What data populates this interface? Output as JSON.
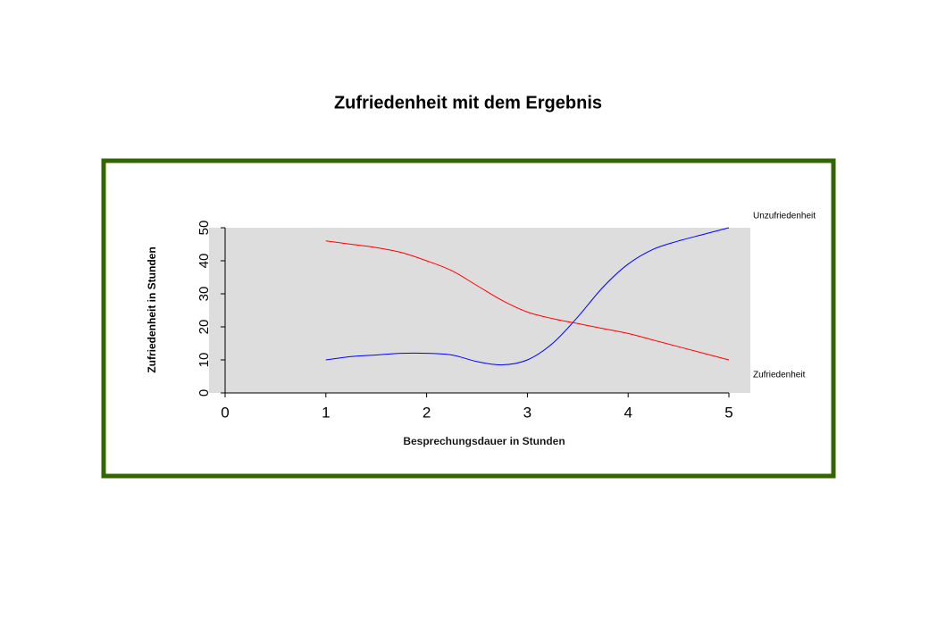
{
  "chart_data": {
    "type": "line",
    "title": "Zufriedenheit mit dem Ergebnis",
    "x_label": "Besprechungsdauer  in Stunden",
    "y_label": "Zufriedenheit  in Stunden",
    "x": [
      1,
      1.25,
      1.5,
      1.75,
      2,
      2.25,
      2.5,
      2.75,
      3,
      3.25,
      3.5,
      3.75,
      4,
      4.25,
      4.5,
      4.75,
      5
    ],
    "series": [
      {
        "name": "Unzufriedenheit",
        "color": "#0000ff",
        "values": [
          10,
          11,
          11.5,
          12,
          12,
          11.5,
          9.5,
          8.5,
          10,
          15,
          23,
          32,
          39,
          43.5,
          46,
          48,
          50
        ]
      },
      {
        "name": "Zufriedenheit",
        "color": "#ff0000",
        "values": [
          46,
          45,
          44,
          42.5,
          40,
          37,
          32.5,
          28,
          24.5,
          22.5,
          21,
          19.5,
          18,
          16,
          14,
          12,
          10
        ]
      }
    ],
    "xlim": [
      0,
      5
    ],
    "xticks": [
      0,
      1,
      2,
      3,
      4,
      5
    ],
    "ylim": [
      0,
      50
    ],
    "yticks": [
      0,
      10,
      20,
      30,
      40,
      50
    ]
  }
}
